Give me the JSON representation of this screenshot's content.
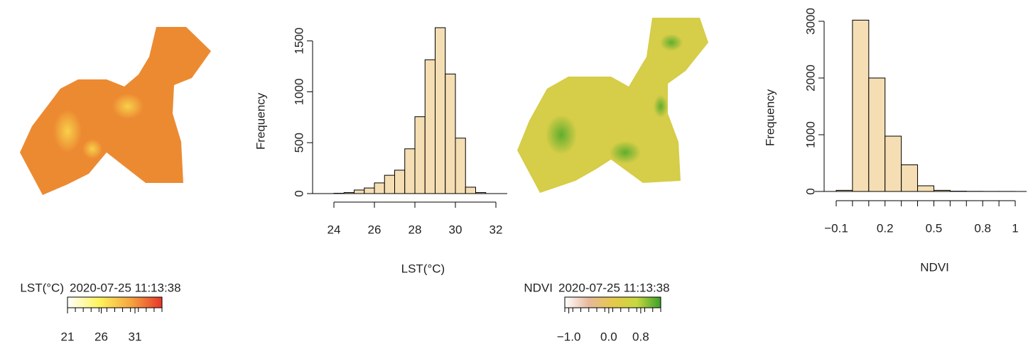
{
  "chart_data": [
    {
      "type": "map",
      "legend_title": "LST(°C)",
      "timestamp": "2020-07-25 11:13:38",
      "colors": [
        "#ffffff",
        "#fff45c",
        "#f5a640",
        "#e8352a"
      ],
      "lim": [
        21,
        35
      ],
      "ticks": [
        21,
        26,
        31
      ]
    },
    {
      "type": "histogram",
      "xlabel": "LST(°C)",
      "ylabel": "Frequency",
      "color": "#f5deb3",
      "bins": [
        24,
        24.5,
        25,
        25.5,
        26,
        26.5,
        27,
        27.5,
        28,
        28.5,
        29,
        29.5,
        30,
        30.5,
        31,
        31.5
      ],
      "counts": [
        3,
        10,
        35,
        55,
        105,
        180,
        230,
        440,
        755,
        1315,
        1630,
        1175,
        545,
        63,
        10
      ],
      "xlim": [
        24,
        32
      ],
      "xticks": [
        24,
        26,
        28,
        30,
        32
      ],
      "ylim": [
        0,
        1700
      ],
      "yticks": [
        0,
        500,
        1000,
        1500
      ]
    },
    {
      "type": "map",
      "legend_title": "NDVI",
      "timestamp": "2020-07-25 11:13:38",
      "colors": [
        "#ffffff",
        "#e8b89a",
        "#e6c84a",
        "#c8d840",
        "#3aa02a"
      ],
      "lim": [
        -1.1,
        1.3
      ],
      "ticks": [
        {
          "value": -1,
          "label": "−1.0"
        },
        {
          "value": 0,
          "label": "0.0"
        },
        0.8
      ]
    },
    {
      "type": "histogram",
      "xlabel": "NDVI",
      "ylabel": "Frequency",
      "color": "#f5deb3",
      "bins": [
        -0.1,
        0,
        0.1,
        0.2,
        0.3,
        0.4,
        0.5,
        0.6,
        0.7,
        0.8,
        0.9,
        1
      ],
      "counts": [
        20,
        3020,
        2000,
        975,
        470,
        100,
        20,
        5,
        2,
        1,
        1
      ],
      "xlim": [
        -0.1,
        1
      ],
      "xticks": [
        {
          "value": -0.1,
          "label": "−0.1"
        },
        0.2,
        0.5,
        0.8,
        1
      ],
      "xticks_minor": [
        0,
        0.1,
        0.3,
        0.4,
        0.6,
        0.7,
        0.9
      ],
      "ylim": [
        0,
        3100
      ],
      "yticks": [
        0,
        1000,
        2000,
        3000
      ]
    }
  ]
}
